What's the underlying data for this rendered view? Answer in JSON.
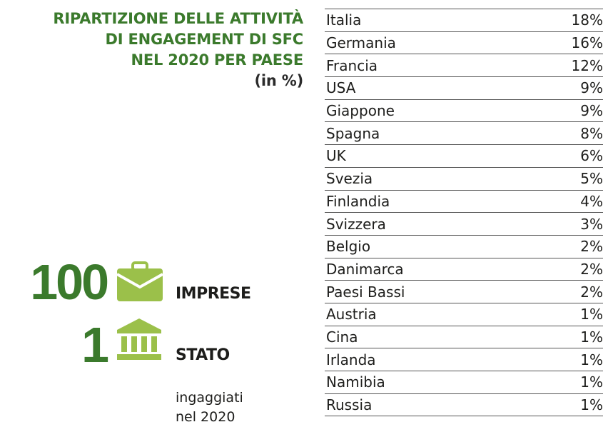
{
  "title": {
    "lines": [
      "RIPARTIZIONE DELLE ATTIVITÀ",
      "DI ENGAGEMENT DI SFC",
      "NEL 2020 PER PAESE"
    ],
    "unit": "(in %)"
  },
  "stats": {
    "companies": {
      "value": "100",
      "label": "IMPRESE",
      "icon": "briefcase-icon"
    },
    "states": {
      "value": "1",
      "label": "STATO",
      "icon": "bank-icon"
    },
    "note": [
      "ingaggiati",
      "nel 2020"
    ]
  },
  "colors": {
    "accent_dark": "#3b7a2c",
    "accent_light": "#9bc04a"
  },
  "table": [
    {
      "country": "Italia",
      "percent": "18%"
    },
    {
      "country": "Germania",
      "percent": "16%"
    },
    {
      "country": "Francia",
      "percent": "12%"
    },
    {
      "country": "USA",
      "percent": "9%"
    },
    {
      "country": "Giappone",
      "percent": "9%"
    },
    {
      "country": "Spagna",
      "percent": "8%"
    },
    {
      "country": "UK",
      "percent": "6%"
    },
    {
      "country": "Svezia",
      "percent": "5%"
    },
    {
      "country": "Finlandia",
      "percent": "4%"
    },
    {
      "country": "Svizzera",
      "percent": "3%"
    },
    {
      "country": "Belgio",
      "percent": "2%"
    },
    {
      "country": "Danimarca",
      "percent": "2%"
    },
    {
      "country": "Paesi Bassi",
      "percent": "2%"
    },
    {
      "country": "Austria",
      "percent": "1%"
    },
    {
      "country": "Cina",
      "percent": "1%"
    },
    {
      "country": "Irlanda",
      "percent": "1%"
    },
    {
      "country": "Namibia",
      "percent": "1%"
    },
    {
      "country": "Russia",
      "percent": "1%"
    }
  ]
}
